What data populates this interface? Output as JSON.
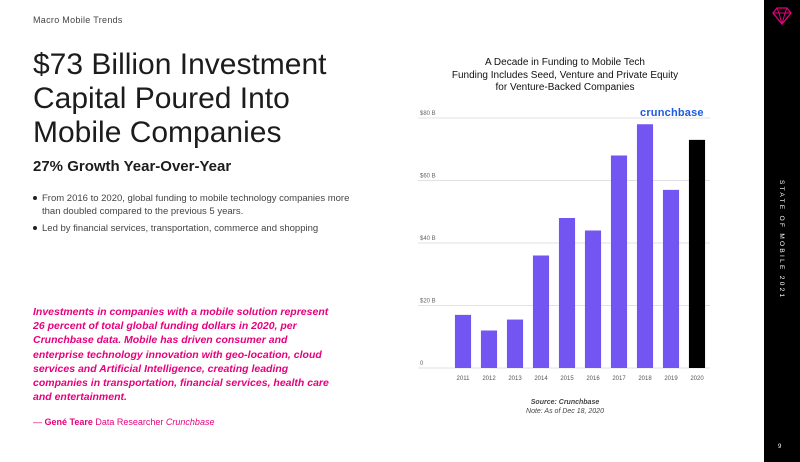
{
  "slide": {
    "section_label": "Macro Mobile Trends",
    "headline": "$73 Billion Investment Capital Poured Into Mobile Companies",
    "subhead": "27% Growth Year-Over-Year",
    "bullets": [
      "From 2016 to 2020, global funding to mobile technology companies more than doubled compared to the previous 5 years.",
      "Led by financial services, transportation, commerce and shopping"
    ],
    "quote": "Investments in companies with a mobile solution represent 26 percent of total global funding dollars in 2020, per Crunchbase data. Mobile has driven consumer and enterprise technology innovation with geo-location, cloud services and Artificial Intelligence, creating leading companies in transportation, financial services, health care and entertainment.",
    "attribution": {
      "dash": "— ",
      "author": "Gené Teare",
      "role": " Data Researcher ",
      "company": "Crunchbase"
    },
    "sidebar_text": "STATE OF MOBILE 2021",
    "page_number": "9",
    "colors": {
      "accent": "#e6007e",
      "bar": "#7356f2",
      "highlight_bar": "#000000",
      "logo": "#1c5ae0"
    }
  },
  "chart_header": {
    "title_lines": [
      "A Decade in Funding to Mobile Tech",
      "Funding Includes Seed, Venture and Private Equity",
      "for Venture-Backed Companies"
    ],
    "logo": "crunchbase",
    "source": "Source: Crunchbase",
    "note": "Note: As of Dec 18, 2020"
  },
  "chart_data": {
    "type": "bar",
    "categories": [
      "2011",
      "2012",
      "2013",
      "2014",
      "2015",
      "2016",
      "2017",
      "2018",
      "2019",
      "2020"
    ],
    "values": [
      17,
      12,
      15.5,
      36,
      48,
      44,
      68,
      78,
      57,
      73
    ],
    "ylim": [
      0,
      80
    ],
    "yticks": [
      0,
      20,
      40,
      60,
      80
    ],
    "ytick_labels": [
      "0",
      "$20 B",
      "$40 B",
      "$60 B",
      "$80 B"
    ],
    "highlight_category": "2020",
    "grid": true
  }
}
